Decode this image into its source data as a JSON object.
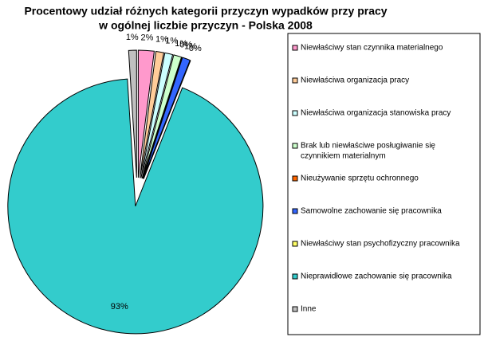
{
  "chart_data": {
    "type": "pie",
    "title": [
      "Procentowy udział różnych kategorii przyczyn wypadków przy pracy",
      "w ogólnej liczbie przyczyn - Polska 2008"
    ],
    "categories": [
      [
        "Niewłaściwy stan czynnika materialnego"
      ],
      [
        "Niewłaściwa organizacja pracy"
      ],
      [
        "Niewłaściwa organizacja stanowiska pracy"
      ],
      [
        "Brak lub niewłaściwe posługiwanie się",
        "czynnikiem materialnym"
      ],
      [
        "Nieużywanie sprzętu ochronnego"
      ],
      [
        "Samowolne zachowanie się pracownika"
      ],
      [
        "Niewłaściwy stan psychofizyczny pracownika"
      ],
      [
        "Nieprawidłowe zachowanie się pracownika"
      ],
      [
        "Inne"
      ]
    ],
    "values": [
      2,
      1,
      1,
      1,
      0,
      1,
      0,
      93,
      1
    ],
    "value_labels": [
      "2%",
      "1%",
      "1%",
      "1%",
      "0%",
      "1%",
      "0%",
      "93%",
      "1%"
    ],
    "colors": [
      "#ff99cc",
      "#ffcc99",
      "#ccffff",
      "#ccffcc",
      "#ff6600",
      "#3366ff",
      "#ffff66",
      "#33cccc",
      "#c0c0c0"
    ],
    "legend": "right"
  }
}
